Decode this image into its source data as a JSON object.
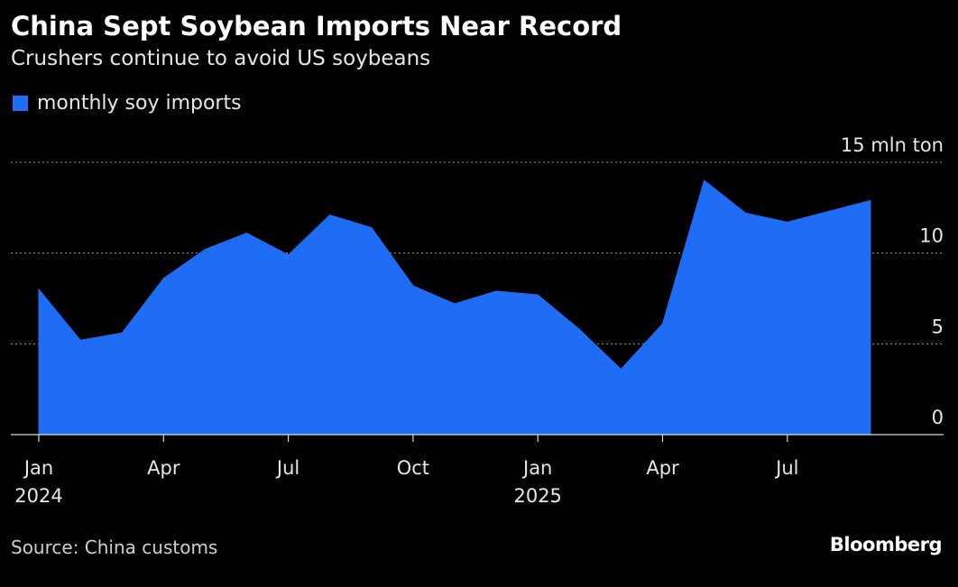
{
  "title": "China Sept Soybean Imports Near Record",
  "subtitle": "Crushers continue to avoid US soybeans",
  "legend": {
    "label": "monthly soy imports",
    "color": "#1f6cf5"
  },
  "source": "Source: China customs",
  "brand": "Bloomberg",
  "chart_data": {
    "type": "area",
    "title": "China Sept Soybean Imports Near Record",
    "subtitle": "Crushers continue to avoid US soybeans",
    "ylabel": "",
    "unit_label": "15 mln ton",
    "ylim": [
      0,
      15
    ],
    "y_ticks": [
      {
        "value": 15,
        "label": "15 mln ton"
      },
      {
        "value": 10,
        "label": "10"
      },
      {
        "value": 5,
        "label": "5"
      },
      {
        "value": 0,
        "label": "0"
      }
    ],
    "x_ticks": [
      {
        "index": 0,
        "line1": "Jan",
        "line2": "2024"
      },
      {
        "index": 3,
        "line1": "Apr",
        "line2": ""
      },
      {
        "index": 6,
        "line1": "Jul",
        "line2": ""
      },
      {
        "index": 9,
        "line1": "Oct",
        "line2": ""
      },
      {
        "index": 12,
        "line1": "Jan",
        "line2": "2025"
      },
      {
        "index": 15,
        "line1": "Apr",
        "line2": ""
      },
      {
        "index": 18,
        "line1": "Jul",
        "line2": ""
      }
    ],
    "grid": true,
    "legend_position": "top-left",
    "series": [
      {
        "name": "monthly soy imports",
        "color": "#1f6cf5",
        "x": [
          "2024-01",
          "2024-02",
          "2024-03",
          "2024-04",
          "2024-05",
          "2024-06",
          "2024-07",
          "2024-08",
          "2024-09",
          "2024-10",
          "2024-11",
          "2024-12",
          "2025-01",
          "2025-02",
          "2025-03",
          "2025-04",
          "2025-05",
          "2025-06",
          "2025-07",
          "2025-08",
          "2025-09"
        ],
        "values": [
          8.0,
          5.2,
          5.6,
          8.6,
          10.2,
          11.1,
          9.9,
          12.1,
          11.4,
          8.2,
          7.2,
          7.9,
          7.7,
          5.8,
          3.6,
          6.1,
          14.0,
          12.2,
          11.7,
          12.3,
          12.9
        ]
      }
    ]
  }
}
